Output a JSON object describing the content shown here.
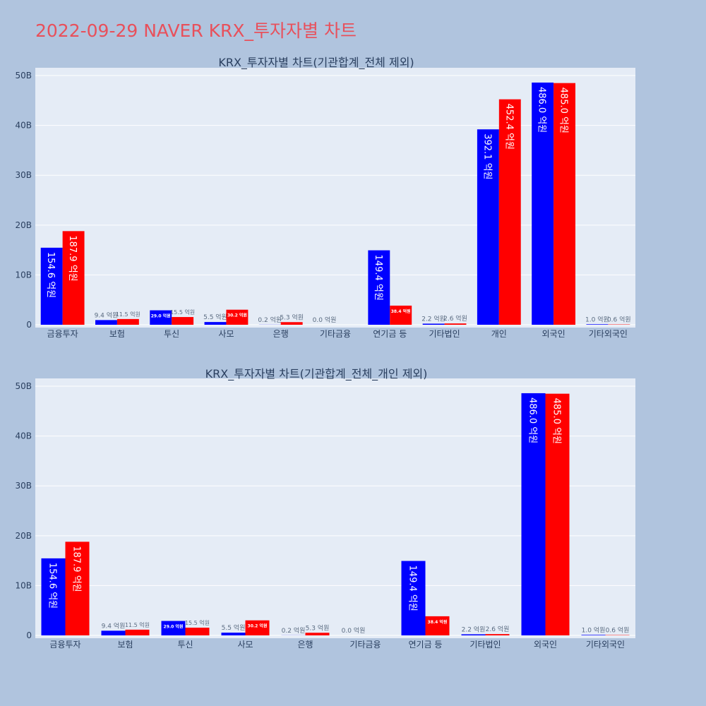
{
  "page": {
    "title": "2022-09-29 NAVER KRX_투자자별 차트"
  },
  "colors": {
    "buy": "#0000ff",
    "sell": "#ff0000",
    "plot_bg": "#e5ecf6",
    "page_bg": "#b0c4de",
    "title": "#e8505b"
  },
  "chart_data": [
    {
      "type": "bar",
      "title": "KRX_투자자별 차트(기관합계_전체 제외)",
      "categories": [
        "금융투자",
        "보험",
        "투신",
        "사모",
        "은행",
        "기타금융",
        "연기금 등",
        "기타법인",
        "개인",
        "외국인",
        "기타외국인"
      ],
      "series": [
        {
          "name": "buy",
          "color": "#0000ff",
          "values": [
            15.46,
            0.94,
            2.9,
            0.55,
            0.02,
            0.0,
            14.94,
            0.22,
            39.21,
            48.6,
            0.1
          ],
          "labels": [
            "154.6 억원",
            "9.4 억원",
            "29.0 억원",
            "5.5 억원",
            "0.2 억원",
            "0.0 억원",
            "149.4 억원",
            "2.2 억원",
            "392.1 억원",
            "486.0 억원",
            "1.0 억원"
          ]
        },
        {
          "name": "sell",
          "color": "#ff0000",
          "values": [
            18.79,
            1.15,
            1.55,
            3.02,
            0.53,
            0.0,
            3.84,
            0.26,
            45.24,
            48.5,
            0.06
          ],
          "labels": [
            "187.9 억원",
            "11.5 억원",
            "15.5 억원",
            "30.2 억원",
            "5.3 억원",
            "",
            "38.4 억원",
            "2.6 억원",
            "452.4 억원",
            "485.0 억원",
            "0.6 억원"
          ]
        }
      ],
      "ylim": [
        0,
        51
      ],
      "yticks": [
        0,
        10,
        20,
        30,
        40,
        50
      ],
      "ytick_labels": [
        "0",
        "10B",
        "20B",
        "30B",
        "40B",
        "50B"
      ]
    },
    {
      "type": "bar",
      "title": "KRX_투자자별 차트(기관합계_전체_개인 제외)",
      "categories": [
        "금융투자",
        "보험",
        "투신",
        "사모",
        "은행",
        "기타금융",
        "연기금 등",
        "기타법인",
        "외국인",
        "기타외국인"
      ],
      "series": [
        {
          "name": "buy",
          "color": "#0000ff",
          "values": [
            15.46,
            0.94,
            2.9,
            0.55,
            0.02,
            0.0,
            14.94,
            0.22,
            48.6,
            0.1
          ],
          "labels": [
            "154.6 억원",
            "9.4 억원",
            "29.0 억원",
            "5.5 억원",
            "0.2 억원",
            "0.0 억원",
            "149.4 억원",
            "2.2 억원",
            "486.0 억원",
            "1.0 억원"
          ]
        },
        {
          "name": "sell",
          "color": "#ff0000",
          "values": [
            18.79,
            1.15,
            1.55,
            3.02,
            0.53,
            0.0,
            3.84,
            0.26,
            48.5,
            0.06
          ],
          "labels": [
            "187.9 억원",
            "11.5 억원",
            "15.5 억원",
            "30.2 억원",
            "5.3 억원",
            "",
            "38.4 억원",
            "2.6 억원",
            "485.0 억원",
            "0.6 억원"
          ]
        }
      ],
      "ylim": [
        0,
        51
      ],
      "yticks": [
        0,
        10,
        20,
        30,
        40,
        50
      ],
      "ytick_labels": [
        "0",
        "10B",
        "20B",
        "30B",
        "40B",
        "50B"
      ]
    }
  ]
}
